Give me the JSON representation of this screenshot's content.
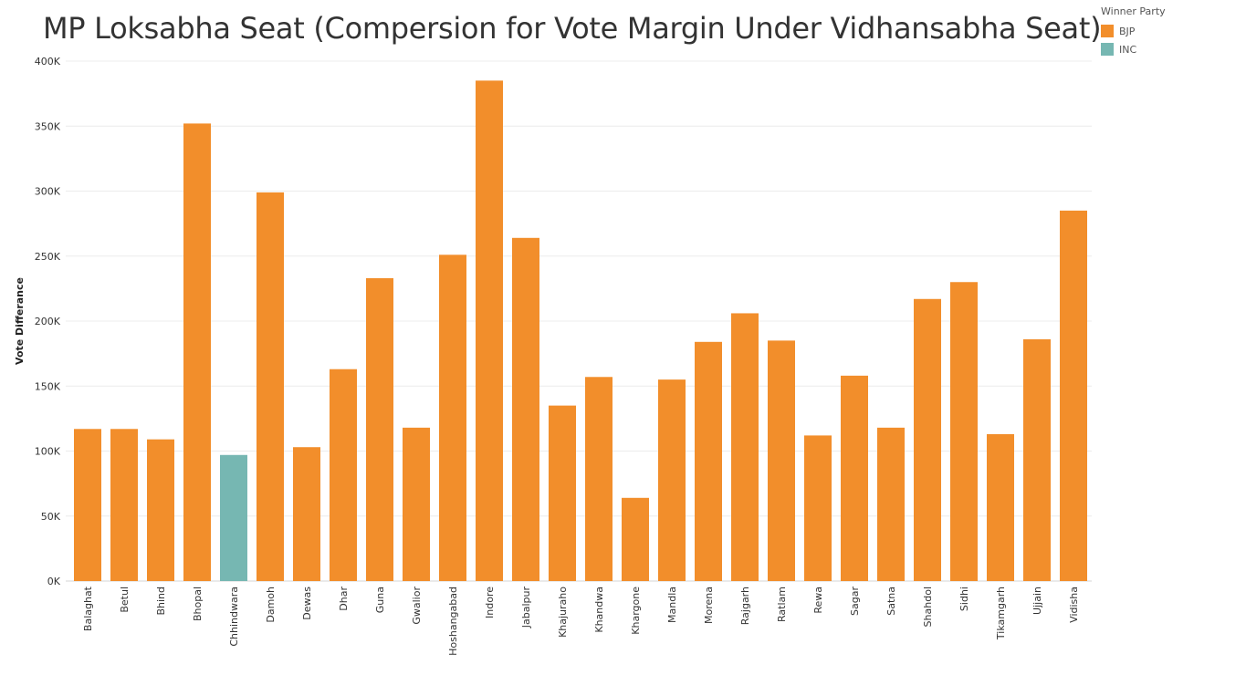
{
  "chart_data": {
    "type": "bar",
    "title": "MP Loksabha Seat (Compersion for Vote Margin Under Vidhansabha Seat)",
    "xlabel": "",
    "ylabel": "Vote Differance",
    "ylim": [
      0,
      400000
    ],
    "yticks": [
      0,
      50000,
      100000,
      150000,
      200000,
      250000,
      300000,
      350000,
      400000
    ],
    "ytick_labels": [
      "0K",
      "50K",
      "100K",
      "150K",
      "200K",
      "250K",
      "300K",
      "350K",
      "400K"
    ],
    "legend": {
      "title": "Winner Party",
      "placement": "top-right",
      "entries": [
        {
          "name": "BJP",
          "color": "#f28e2b"
        },
        {
          "name": "INC",
          "color": "#76b7b2"
        }
      ]
    },
    "categories": [
      "Balaghat",
      "Betul",
      "Bhind",
      "Bhopal",
      "Chhindwara",
      "Damoh",
      "Dewas",
      "Dhar",
      "Guna",
      "Gwalior",
      "Hoshangabad",
      "Indore",
      "Jabalpur",
      "Khajuraho",
      "Khandwa",
      "Khargone",
      "Mandla",
      "Morena",
      "Rajgarh",
      "Ratlam",
      "Rewa",
      "Sagar",
      "Satna",
      "Shahdol",
      "Sidhi",
      "Tikamgarh",
      "Ujjain",
      "Vidisha"
    ],
    "values": [
      117000,
      117000,
      109000,
      352000,
      97000,
      299000,
      103000,
      163000,
      233000,
      118000,
      251000,
      385000,
      264000,
      135000,
      157000,
      64000,
      155000,
      184000,
      206000,
      185000,
      112000,
      158000,
      118000,
      217000,
      230000,
      113000,
      186000,
      285000
    ],
    "winner": [
      "BJP",
      "BJP",
      "BJP",
      "BJP",
      "INC",
      "BJP",
      "BJP",
      "BJP",
      "BJP",
      "BJP",
      "BJP",
      "BJP",
      "BJP",
      "BJP",
      "BJP",
      "BJP",
      "BJP",
      "BJP",
      "BJP",
      "BJP",
      "BJP",
      "BJP",
      "BJP",
      "BJP",
      "BJP",
      "BJP",
      "BJP",
      "BJP"
    ],
    "grid": true
  }
}
